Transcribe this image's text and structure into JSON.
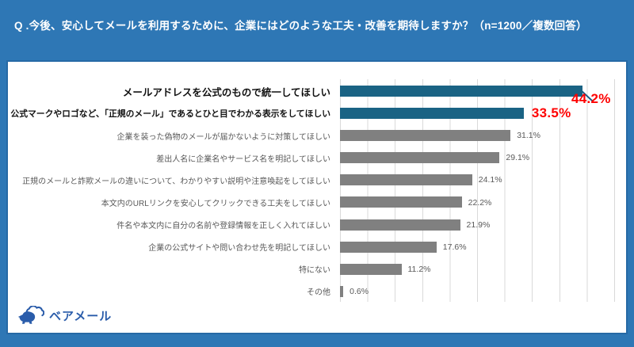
{
  "header": {
    "question": "Q .今後、安心してメールを利用するために、企業にはどのような工夫・改善を期待しますか？（n=1200／複数回答）"
  },
  "logo": {
    "icon": "bear-cloud-icon",
    "text": "ベアメール"
  },
  "colors": {
    "background_blue": "#2e77b5",
    "bar_blue": "#1a6384",
    "bar_gray": "#808080",
    "highlight_red": "#fe0000",
    "text_gray": "#595959",
    "text_dark": "#111111",
    "gridline": "#d9d9d9",
    "logo_blue": "#2a5caa"
  },
  "chart_data": {
    "type": "bar",
    "orientation": "horizontal",
    "title": "Q .今後、安心してメールを利用するために、企業にはどのような工夫・改善を期待しますか？（n=1200／複数回答）",
    "categories": [
      "メールアドレスを公式のもので統一してほしい",
      "公式マークやロゴなど、「正規のメール」であるとひと目でわかる表示をしてほしい",
      "企業を装った偽物のメールが届かないように対策してほしい",
      "差出人名に企業名やサービス名を明記してほしい",
      "正規のメールと詐欺メールの違いについて、わかりやすい説明や注意喚起をしてほしい",
      "本文内のURLリンクを安心してクリックできる工夫をしてほしい",
      "件名や本文内に自分の名前や登録情報を正しく入れてほしい",
      "企業の公式サイトや問い合わせ先を明記してほしい",
      "特にない",
      "その他"
    ],
    "values": [
      44.2,
      33.5,
      31.1,
      29.1,
      24.1,
      22.2,
      21.9,
      17.6,
      11.2,
      0.6
    ],
    "value_labels": [
      "44.2%",
      "33.5%",
      "31.1%",
      "29.1%",
      "24.1%",
      "22.2%",
      "21.9%",
      "17.6%",
      "11.2%",
      "0.6%"
    ],
    "highlighted_indices": [
      0,
      1
    ],
    "xlim": [
      0,
      50
    ],
    "gridline_interval": 5,
    "grid": true,
    "legend": false
  }
}
